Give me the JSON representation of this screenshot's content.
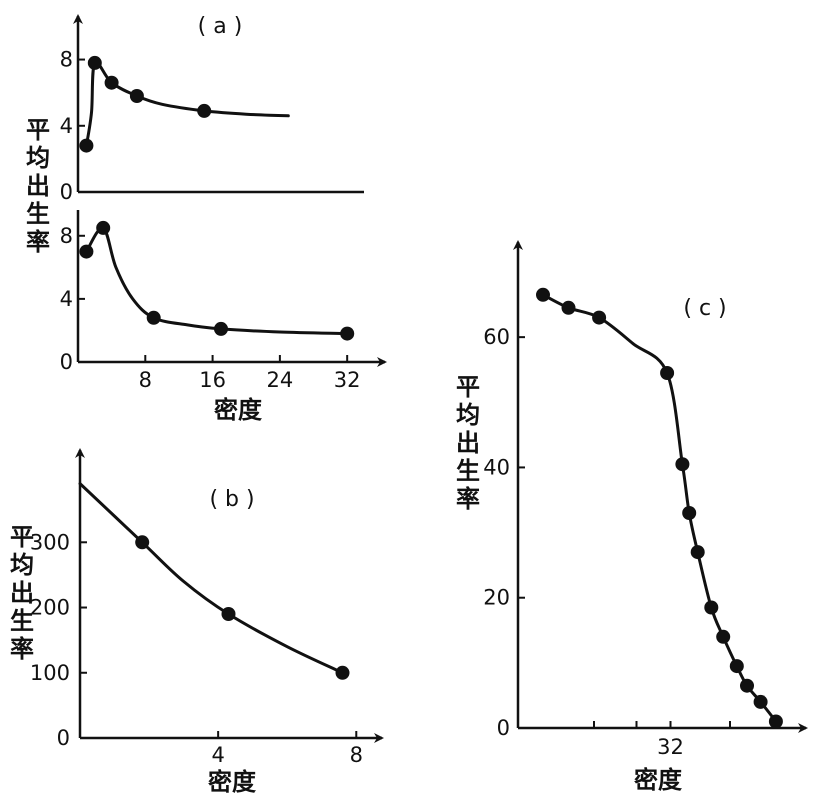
{
  "figure": {
    "background": "#ffffff",
    "ink": "#111111"
  },
  "chart_data": [
    {
      "id": "a",
      "type": "line",
      "panel_label": "( a )",
      "ylabel": "平均出生率",
      "xlabel": "密度",
      "x_ticks": [
        "8",
        "16",
        "24",
        "32"
      ],
      "x_tick_values": [
        8,
        16,
        24,
        32
      ],
      "xlim": [
        0,
        34
      ],
      "subplots": [
        {
          "id": "a-upper",
          "y_ticks": [
            "8",
            "4",
            "0"
          ],
          "y_tick_values": [
            8,
            4,
            0
          ],
          "ylim": [
            0,
            9
          ],
          "points": [
            [
              1,
              2.8
            ],
            [
              2,
              7.8
            ],
            [
              4,
              6.6
            ],
            [
              7,
              5.8
            ],
            [
              15,
              4.9
            ]
          ],
          "curve": [
            [
              1,
              2.8
            ],
            [
              1.6,
              4.8
            ],
            [
              2,
              7.8
            ],
            [
              4,
              6.6
            ],
            [
              7,
              5.8
            ],
            [
              10,
              5.3
            ],
            [
              15,
              4.9
            ],
            [
              20,
              4.7
            ],
            [
              25,
              4.6
            ]
          ]
        },
        {
          "id": "a-lower",
          "y_ticks": [
            "8",
            "4",
            "0"
          ],
          "y_tick_values": [
            8,
            4,
            0
          ],
          "ylim": [
            0,
            9
          ],
          "points": [
            [
              1,
              7
            ],
            [
              3,
              8.5
            ],
            [
              9,
              2.8
            ],
            [
              17,
              2.1
            ],
            [
              32,
              1.8
            ]
          ],
          "curve": [
            [
              1,
              7
            ],
            [
              3,
              8.5
            ],
            [
              4.5,
              6
            ],
            [
              6.5,
              4
            ],
            [
              9,
              2.8
            ],
            [
              13,
              2.35
            ],
            [
              17,
              2.1
            ],
            [
              24,
              1.9
            ],
            [
              32,
              1.8
            ]
          ]
        }
      ]
    },
    {
      "id": "b",
      "type": "line",
      "panel_label": "( b )",
      "ylabel": "平均出生率",
      "xlabel": "密度",
      "x_ticks": [
        "4",
        "8"
      ],
      "x_tick_values": [
        4,
        8
      ],
      "xlim": [
        0,
        8.6
      ],
      "y_ticks": [
        "300",
        "200",
        "100",
        "0"
      ],
      "y_tick_values": [
        300,
        200,
        100,
        0
      ],
      "ylim": [
        0,
        420
      ],
      "points": [
        [
          1.8,
          300
        ],
        [
          4.3,
          190
        ],
        [
          7.6,
          100
        ]
      ],
      "curve": [
        [
          0,
          390
        ],
        [
          1.8,
          300
        ],
        [
          3,
          240
        ],
        [
          4.3,
          190
        ],
        [
          6,
          140
        ],
        [
          7.6,
          100
        ]
      ]
    },
    {
      "id": "c",
      "type": "line",
      "panel_label": "( c )",
      "ylabel": "平均出生率",
      "xlabel": "密度",
      "x_ticks": [
        "32"
      ],
      "x_tick_values": [
        32
      ],
      "xlim": [
        23.5,
        38.5
      ],
      "y_ticks": [
        "60",
        "40",
        "20",
        "0"
      ],
      "y_tick_values": [
        60,
        40,
        20,
        0
      ],
      "ylim": [
        0,
        70
      ],
      "points": [
        [
          24.5,
          66.5
        ],
        [
          26,
          64.5
        ],
        [
          27.8,
          63
        ],
        [
          31.8,
          54.5
        ],
        [
          32.7,
          40.5
        ],
        [
          33.1,
          33
        ],
        [
          33.6,
          27
        ],
        [
          34.4,
          18.5
        ],
        [
          35.1,
          14
        ],
        [
          35.9,
          9.5
        ],
        [
          36.5,
          6.5
        ],
        [
          37.3,
          4
        ],
        [
          38.2,
          1
        ]
      ],
      "curve": [
        [
          24.5,
          66.5
        ],
        [
          26,
          64.5
        ],
        [
          27.8,
          63
        ],
        [
          29.8,
          59
        ],
        [
          31.8,
          54.5
        ],
        [
          32.7,
          40.5
        ],
        [
          33.1,
          33
        ],
        [
          33.6,
          27
        ],
        [
          34.4,
          18.5
        ],
        [
          35.1,
          14
        ],
        [
          35.9,
          9.5
        ],
        [
          36.5,
          6.5
        ],
        [
          37.3,
          4
        ],
        [
          38.2,
          1
        ]
      ]
    }
  ]
}
